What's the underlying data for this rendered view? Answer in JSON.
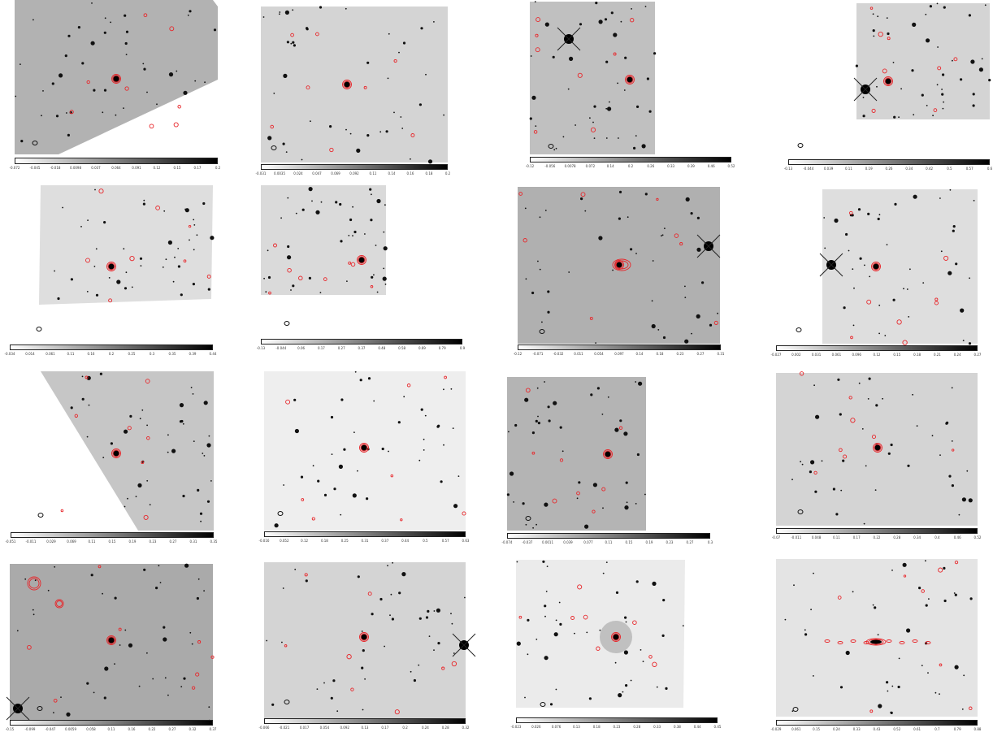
{
  "figure": {
    "panels": [
      {
        "id": 1,
        "colorbar_ticks": [
          "-0.072",
          "-0.045",
          "-0.018",
          "0.0098",
          "0.037",
          "0.064",
          "0.091",
          "0.12",
          "0.15",
          "0.17",
          "0.2"
        ]
      },
      {
        "id": 2,
        "colorbar_ticks": [
          "-0.031",
          "0.0035",
          "0.024",
          "0.047",
          "0.069",
          "0.092",
          "0.11",
          "0.14",
          "0.16",
          "0.18",
          "0.2"
        ]
      },
      {
        "id": 3,
        "colorbar_ticks": [
          "-0.12",
          "-0.056",
          "0.0078",
          "0.072",
          "0.14",
          "0.2",
          "0.26",
          "0.33",
          "0.39",
          "0.46",
          "0.52"
        ]
      },
      {
        "id": 4,
        "colorbar_ticks": [
          "-0.13",
          "-0.044",
          "0.039",
          "0.11",
          "0.19",
          "0.26",
          "0.34",
          "0.42",
          "0.5",
          "0.57",
          "0.6"
        ]
      },
      {
        "id": 5,
        "colorbar_ticks": [
          "-0.034",
          "0.014",
          "0.061",
          "0.11",
          "0.16",
          "0.2",
          "0.25",
          "0.3",
          "0.35",
          "0.39",
          "0.44"
        ]
      },
      {
        "id": 6,
        "colorbar_ticks": [
          "-0.13",
          "-0.044",
          "0.06",
          "0.17",
          "0.27",
          "0.37",
          "0.48",
          "0.58",
          "0.69",
          "0.79",
          "0.9"
        ]
      },
      {
        "id": 7,
        "colorbar_ticks": [
          "-0.12",
          "-0.071",
          "-0.032",
          "0.011",
          "0.054",
          "0.097",
          "0.14",
          "0.18",
          "0.23",
          "0.27",
          "0.31"
        ]
      },
      {
        "id": 8,
        "colorbar_ticks": [
          "-0.027",
          "0.002",
          "0.031",
          "0.061",
          "0.096",
          "0.12",
          "0.15",
          "0.18",
          "0.21",
          "0.24",
          "0.27"
        ]
      },
      {
        "id": 9,
        "colorbar_ticks": [
          "-0.051",
          "-0.011",
          "0.029",
          "0.069",
          "0.11",
          "0.15",
          "0.19",
          "0.23",
          "0.27",
          "0.31",
          "0.35"
        ]
      },
      {
        "id": 10,
        "colorbar_ticks": [
          "-0.016",
          "0.052",
          "0.12",
          "0.18",
          "0.25",
          "0.31",
          "0.37",
          "0.44",
          "0.5",
          "0.57",
          "0.63"
        ]
      },
      {
        "id": 11,
        "colorbar_ticks": [
          "-0.074",
          "-0.037",
          "0.0011",
          "0.039",
          "0.077",
          "0.11",
          "0.15",
          "0.19",
          "0.23",
          "0.27",
          "0.3"
        ]
      },
      {
        "id": 12,
        "colorbar_ticks": [
          "-0.07",
          "-0.011",
          "0.048",
          "0.11",
          "0.17",
          "0.22",
          "0.28",
          "0.34",
          "0.4",
          "0.46",
          "0.52"
        ]
      },
      {
        "id": 13,
        "colorbar_ticks": [
          "-0.15",
          "-0.099",
          "-0.047",
          "0.0059",
          "0.058",
          "0.11",
          "0.16",
          "0.22",
          "0.27",
          "0.32",
          "0.37"
        ]
      },
      {
        "id": 14,
        "colorbar_ticks": [
          "-0.066",
          "-0.021",
          "0.017",
          "0.054",
          "0.092",
          "0.13",
          "0.17",
          "0.2",
          "0.24",
          "0.28",
          "0.32"
        ]
      },
      {
        "id": 15,
        "colorbar_ticks": [
          "-0.023",
          "0.026",
          "0.076",
          "0.13",
          "0.18",
          "0.23",
          "0.28",
          "0.33",
          "0.38",
          "0.44",
          "0.45"
        ]
      },
      {
        "id": 16,
        "colorbar_ticks": [
          "-0.029",
          "0.061",
          "0.15",
          "0.24",
          "0.33",
          "0.43",
          "0.52",
          "0.61",
          "0.7",
          "0.79",
          "0.88"
        ]
      }
    ],
    "colors": {
      "contour": "#e8262a",
      "background_sky": "#b8b8b8",
      "star": "#111111",
      "beam": "#111111"
    }
  }
}
